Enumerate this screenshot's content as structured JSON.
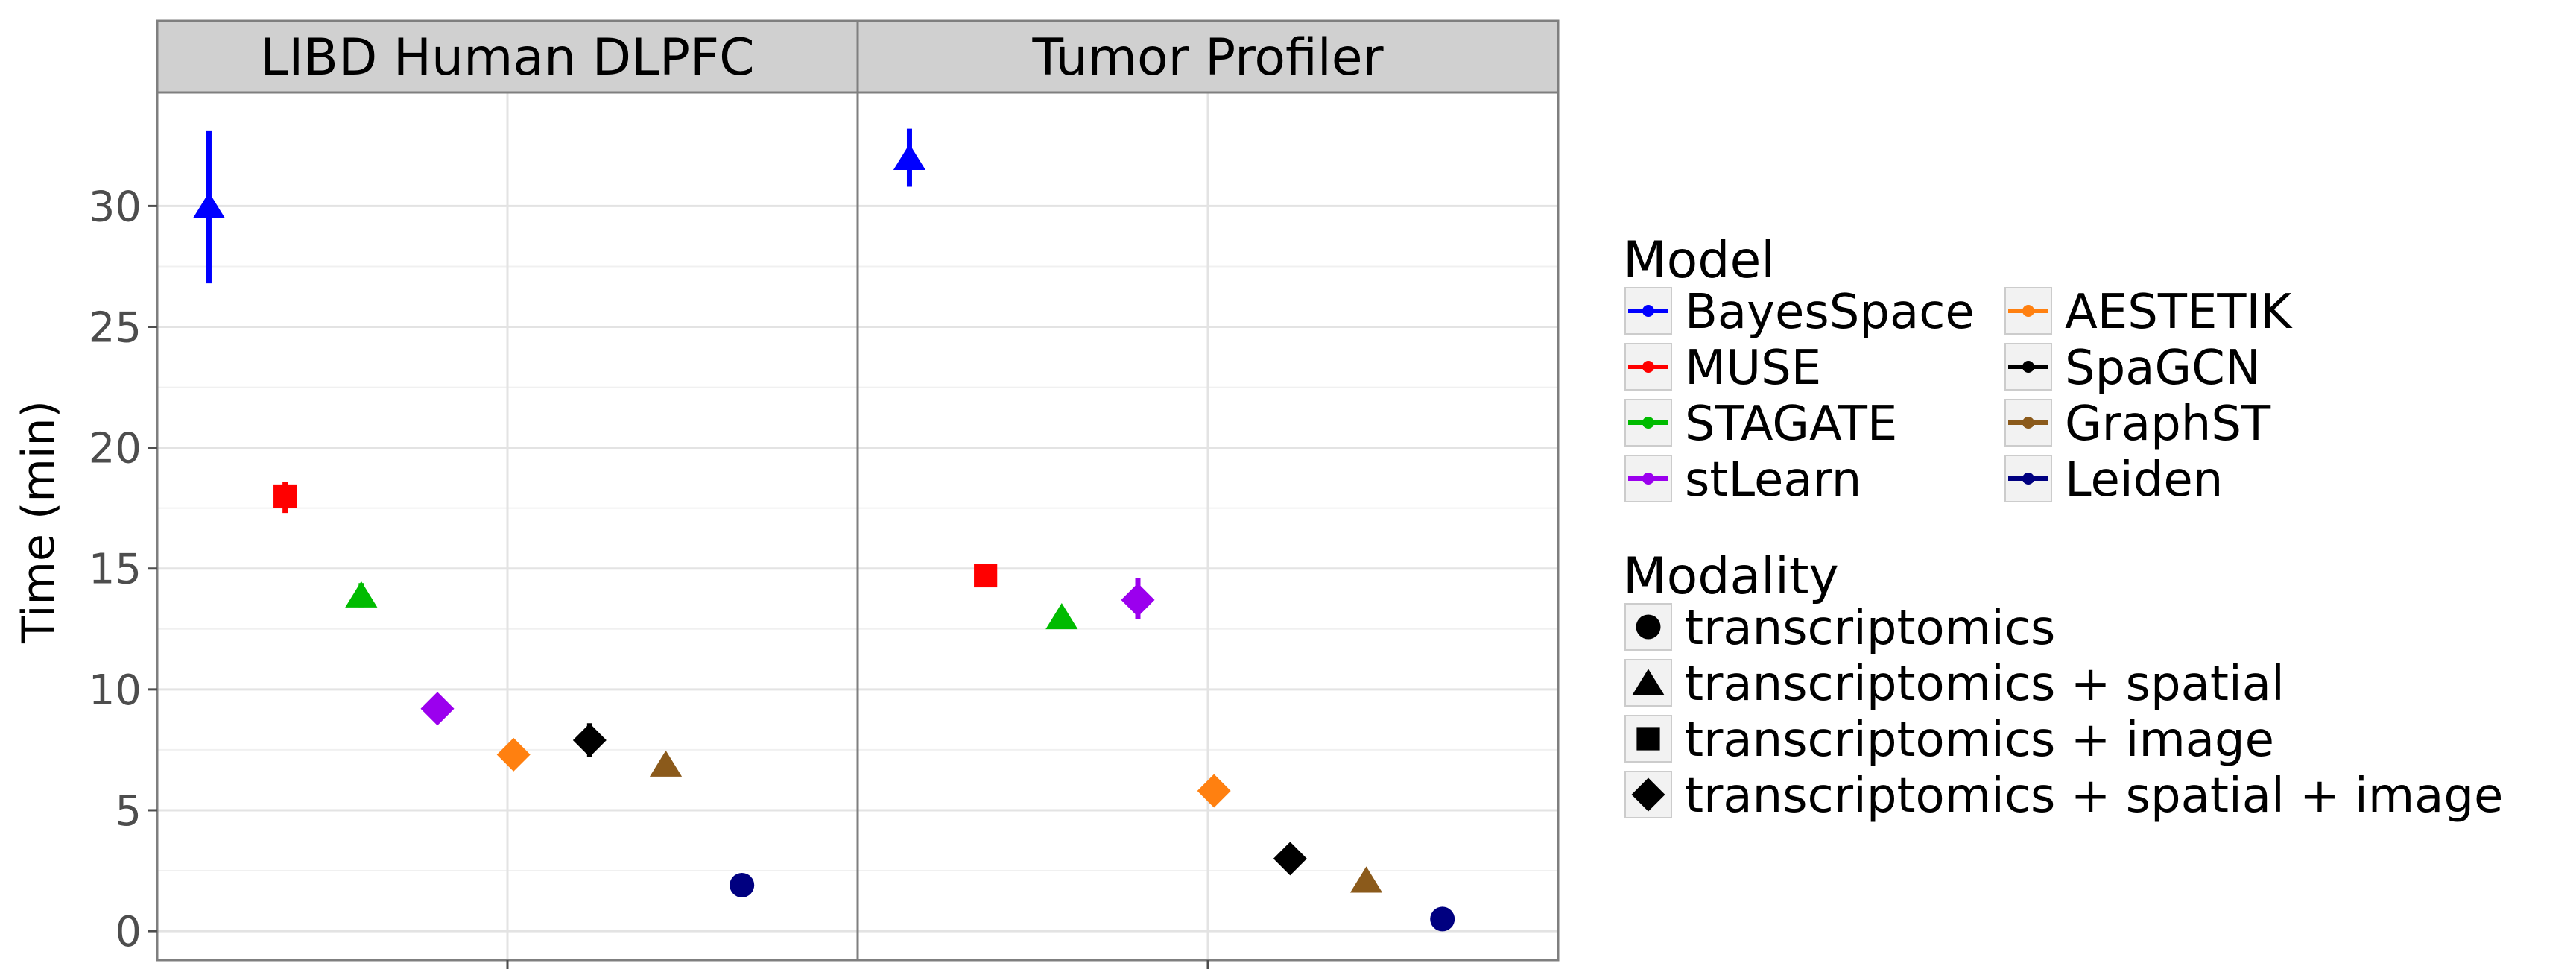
{
  "chart_data": {
    "type": "scatter",
    "subtype": "faceted point plot with error bars",
    "ylabel": "Time (min)",
    "xlabel": "",
    "ylim": [
      -1.2,
      34.7
    ],
    "yticks": [
      0,
      5,
      10,
      15,
      20,
      25,
      30
    ],
    "grid": true,
    "legend_position": "right",
    "facets": [
      {
        "title": "LIBD Human DLPFC",
        "points": [
          {
            "model": "BayesSpace",
            "modality": "transcriptomics + spatial",
            "y": 30.0,
            "ymin": 26.8,
            "ymax": 33.1
          },
          {
            "model": "MUSE",
            "modality": "transcriptomics + image",
            "y": 18.0,
            "ymin": 17.3,
            "ymax": 18.6
          },
          {
            "model": "STAGATE",
            "modality": "transcriptomics + spatial",
            "y": 13.9,
            "ymin": 13.4,
            "ymax": 14.4
          },
          {
            "model": "stLearn",
            "modality": "transcriptomics + spatial + image",
            "y": 9.2,
            "ymin": 9.1,
            "ymax": 9.3
          },
          {
            "model": "AESTETIK",
            "modality": "transcriptomics + spatial + image",
            "y": 7.3,
            "ymin": 7.3,
            "ymax": 7.3
          },
          {
            "model": "SpaGCN",
            "modality": "transcriptomics + spatial + image",
            "y": 7.9,
            "ymin": 7.2,
            "ymax": 8.6
          },
          {
            "model": "GraphST",
            "modality": "transcriptomics + spatial",
            "y": 6.9,
            "ymin": 6.8,
            "ymax": 7.0
          },
          {
            "model": "Leiden",
            "modality": "transcriptomics",
            "y": 1.9,
            "ymin": 1.9,
            "ymax": 1.9
          }
        ]
      },
      {
        "title": "Tumor Profiler",
        "points": [
          {
            "model": "BayesSpace",
            "modality": "transcriptomics + spatial",
            "y": 32.0,
            "ymin": 30.8,
            "ymax": 33.2
          },
          {
            "model": "MUSE",
            "modality": "transcriptomics + image",
            "y": 14.7,
            "ymin": 14.7,
            "ymax": 14.7
          },
          {
            "model": "STAGATE",
            "modality": "transcriptomics + spatial",
            "y": 13.0,
            "ymin": 13.0,
            "ymax": 13.0
          },
          {
            "model": "stLearn",
            "modality": "transcriptomics + spatial + image",
            "y": 13.7,
            "ymin": 12.9,
            "ymax": 14.6
          },
          {
            "model": "AESTETIK",
            "modality": "transcriptomics + spatial + image",
            "y": 5.8,
            "ymin": 5.8,
            "ymax": 5.8
          },
          {
            "model": "SpaGCN",
            "modality": "transcriptomics + spatial + image",
            "y": 3.0,
            "ymin": 3.0,
            "ymax": 3.0
          },
          {
            "model": "GraphST",
            "modality": "transcriptomics + spatial",
            "y": 2.1,
            "ymin": 2.1,
            "ymax": 2.1
          },
          {
            "model": "Leiden",
            "modality": "transcriptomics",
            "y": 0.5,
            "ymin": 0.5,
            "ymax": 0.5
          }
        ]
      }
    ],
    "legend_model": {
      "title": "Model",
      "items": [
        {
          "label": "BayesSpace",
          "color": "#0000ff"
        },
        {
          "label": "MUSE",
          "color": "#ff0000"
        },
        {
          "label": "STAGATE",
          "color": "#00bb00"
        },
        {
          "label": "stLearn",
          "color": "#9b00ee"
        },
        {
          "label": "AESTETIK",
          "color": "#ff8010"
        },
        {
          "label": "SpaGCN",
          "color": "#000000"
        },
        {
          "label": "GraphST",
          "color": "#8b5a1b"
        },
        {
          "label": "Leiden",
          "color": "#000080"
        }
      ]
    },
    "legend_modality": {
      "title": "Modality",
      "items": [
        {
          "label": "transcriptomics",
          "shape": "circle"
        },
        {
          "label": "transcriptomics + spatial",
          "shape": "triangle"
        },
        {
          "label": "transcriptomics + image",
          "shape": "square"
        },
        {
          "label": "transcriptomics + spatial + image",
          "shape": "diamond"
        }
      ]
    }
  }
}
